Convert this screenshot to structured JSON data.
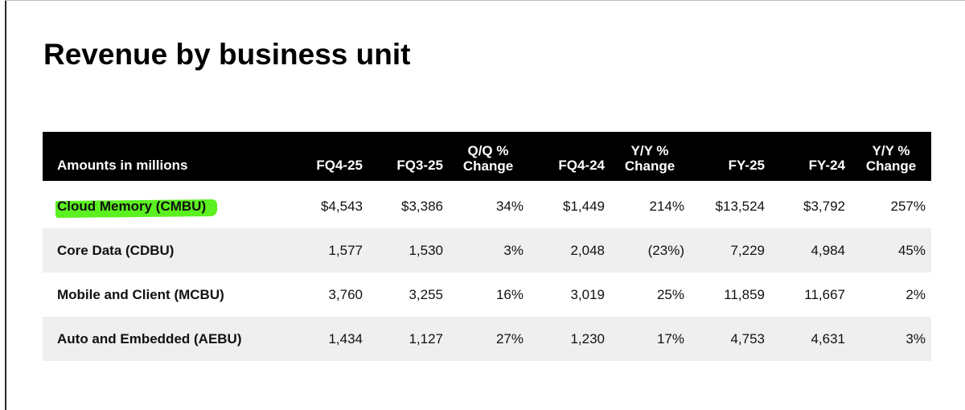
{
  "title": "Revenue by business unit",
  "table": {
    "headers": {
      "label": "Amounts in millions",
      "fq4_25": "FQ4-25",
      "fq3_25": "FQ3-25",
      "qq_change": [
        "Q/Q %",
        "Change"
      ],
      "fq4_24": "FQ4-24",
      "yy_change": [
        "Y/Y %",
        "Change"
      ],
      "fy25": "FY-25",
      "fy24": "FY-24",
      "yy_change_fy": [
        "Y/Y %",
        "Change"
      ]
    },
    "rows": [
      {
        "label": "Cloud Memory (CMBU)",
        "fq4_25": "$4,543",
        "fq3_25": "$3,386",
        "qq_change": "34%",
        "fq4_24": "$1,449",
        "yy_change": "214%",
        "fy25": "$13,524",
        "fy24": "$3,792",
        "yy_change_fy": "257%"
      },
      {
        "label": "Core Data (CDBU)",
        "fq4_25": "1,577",
        "fq3_25": "1,530",
        "qq_change": "3%",
        "fq4_24": "2,048",
        "yy_change": "(23%)",
        "fy25": "7,229",
        "fy24": "4,984",
        "yy_change_fy": "45%"
      },
      {
        "label": "Mobile and Client (MCBU)",
        "fq4_25": "3,760",
        "fq3_25": "3,255",
        "qq_change": "16%",
        "fq4_24": "3,019",
        "yy_change": "25%",
        "fy25": "11,859",
        "fy24": "11,667",
        "yy_change_fy": "2%"
      },
      {
        "label": "Auto and Embedded (AEBU)",
        "fq4_25": "1,434",
        "fq3_25": "1,127",
        "qq_change": "27%",
        "fq4_24": "1,230",
        "yy_change": "17%",
        "fy25": "4,753",
        "fy24": "4,631",
        "yy_change_fy": "3%"
      }
    ]
  },
  "colors": {
    "header_bg": "#000000",
    "header_text": "#ffffff",
    "row_alt_bg": "#efefef",
    "highlight": "#5bf01f"
  }
}
